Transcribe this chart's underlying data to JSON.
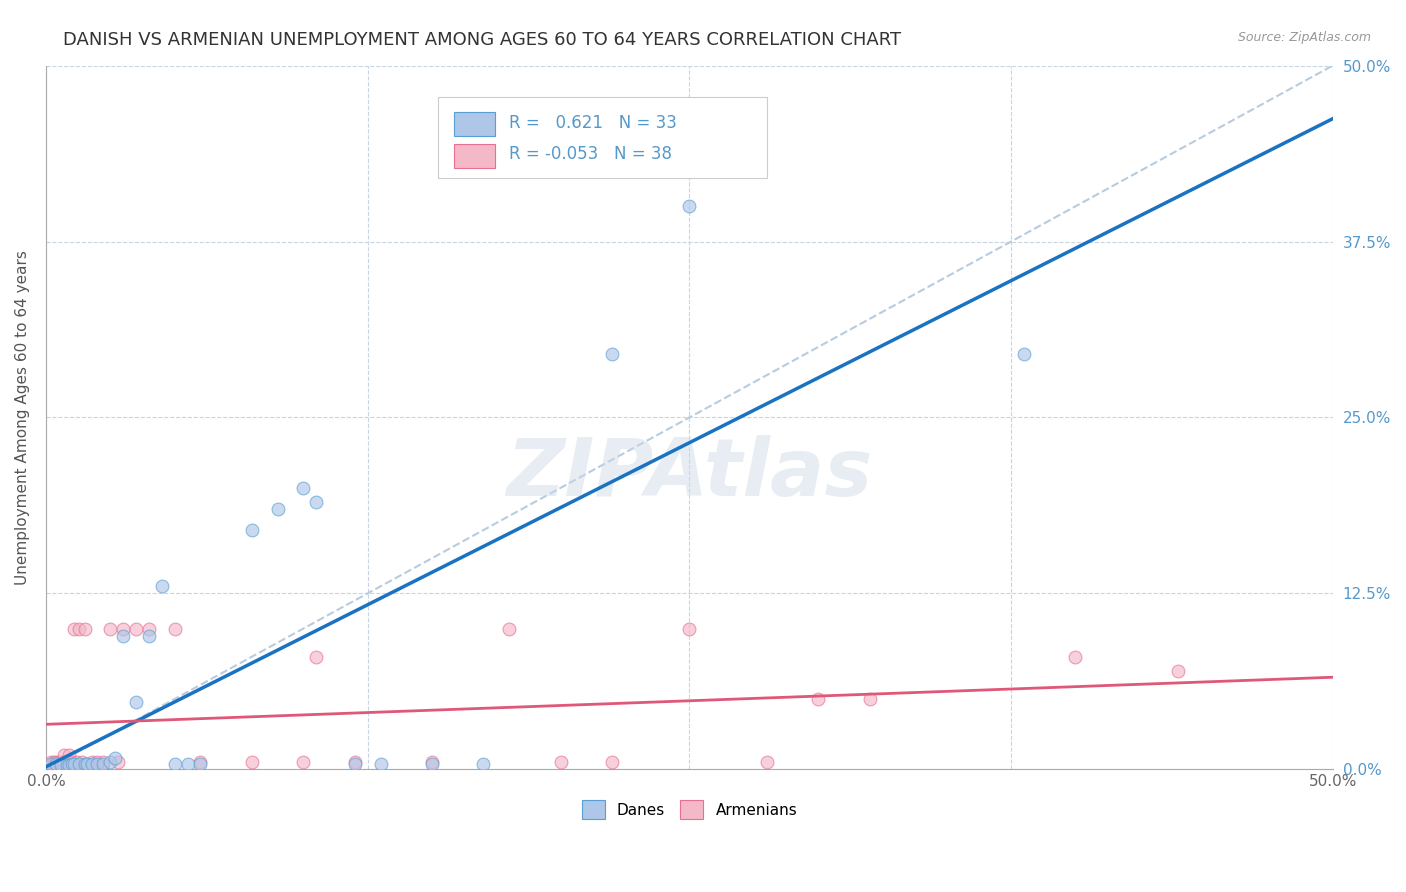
{
  "title": "DANISH VS ARMENIAN UNEMPLOYMENT AMONG AGES 60 TO 64 YEARS CORRELATION CHART",
  "source": "Source: ZipAtlas.com",
  "ylabel": "Unemployment Among Ages 60 to 64 years",
  "xlim": [
    0.0,
    0.5
  ],
  "ylim": [
    0.0,
    0.5
  ],
  "xticks": [
    0.0,
    0.125,
    0.25,
    0.375,
    0.5
  ],
  "yticks": [
    0.0,
    0.125,
    0.25,
    0.375,
    0.5
  ],
  "xticklabels_outer": [
    "0.0%",
    "",
    "",
    "",
    "50.0%"
  ],
  "yticklabels_right": [
    "0.0%",
    "12.5%",
    "25.0%",
    "37.5%",
    "50.0%"
  ],
  "danes_color": "#aec6e8",
  "armenians_color": "#f4b8c8",
  "danes_edge_color": "#5a9fd4",
  "armenians_edge_color": "#e57090",
  "regression_danes_color": "#1a72c2",
  "regression_armenians_color": "#e05878",
  "diag_line_color": "#b8cce0",
  "danes_R": 0.621,
  "danes_N": 33,
  "armenians_R": -0.053,
  "armenians_N": 38,
  "danes_x": [
    0.002,
    0.004,
    0.006,
    0.008,
    0.009,
    0.01,
    0.011,
    0.013,
    0.015,
    0.016,
    0.018,
    0.02,
    0.022,
    0.025,
    0.027,
    0.03,
    0.035,
    0.04,
    0.045,
    0.05,
    0.055,
    0.06,
    0.08,
    0.09,
    0.1,
    0.105,
    0.12,
    0.13,
    0.15,
    0.17,
    0.22,
    0.25,
    0.38
  ],
  "danes_y": [
    0.004,
    0.004,
    0.003,
    0.003,
    0.003,
    0.004,
    0.004,
    0.004,
    0.004,
    0.004,
    0.004,
    0.004,
    0.004,
    0.005,
    0.008,
    0.095,
    0.048,
    0.095,
    0.13,
    0.004,
    0.004,
    0.004,
    0.17,
    0.185,
    0.2,
    0.19,
    0.004,
    0.004,
    0.004,
    0.004,
    0.295,
    0.4,
    0.295
  ],
  "armenians_x": [
    0.002,
    0.003,
    0.004,
    0.005,
    0.006,
    0.007,
    0.008,
    0.009,
    0.01,
    0.011,
    0.012,
    0.013,
    0.014,
    0.015,
    0.018,
    0.02,
    0.022,
    0.025,
    0.028,
    0.03,
    0.035,
    0.04,
    0.05,
    0.06,
    0.08,
    0.1,
    0.105,
    0.12,
    0.15,
    0.18,
    0.2,
    0.22,
    0.25,
    0.28,
    0.3,
    0.32,
    0.4,
    0.44
  ],
  "armenians_y": [
    0.005,
    0.005,
    0.005,
    0.005,
    0.005,
    0.01,
    0.005,
    0.01,
    0.005,
    0.1,
    0.005,
    0.1,
    0.005,
    0.1,
    0.005,
    0.005,
    0.005,
    0.1,
    0.005,
    0.1,
    0.1,
    0.1,
    0.1,
    0.005,
    0.005,
    0.005,
    0.08,
    0.005,
    0.005,
    0.1,
    0.005,
    0.005,
    0.1,
    0.005,
    0.05,
    0.05,
    0.08,
    0.07
  ],
  "marker_size": 85,
  "marker_alpha": 0.65,
  "background_color": "#ffffff",
  "grid_color": "#c8d4e4",
  "watermark_color": "#ccd8e8",
  "legend_box_color": "#ffffff",
  "legend_box_edge": "#cccccc",
  "tick_label_color_right": "#5599cc",
  "tick_label_color_bottom": "#666666"
}
